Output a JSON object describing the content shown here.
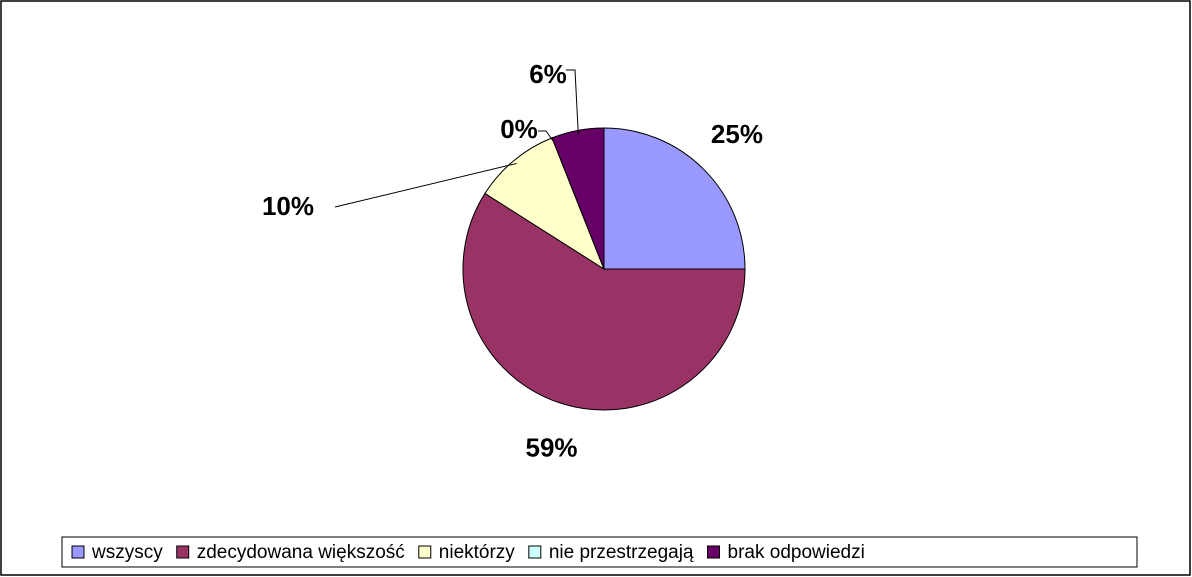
{
  "chart_data": {
    "type": "pie",
    "categories": [
      "wszyscy",
      "zdecydowana większość",
      "niektórzy",
      "nie przestrzegają",
      "brak odpowiedzi"
    ],
    "values": [
      25,
      59,
      10,
      0,
      6
    ],
    "value_labels": [
      "25%",
      "59%",
      "10%",
      "0%",
      "6%"
    ],
    "colors": [
      "#9999ff",
      "#993366",
      "#ffffcc",
      "#ccffff",
      "#660066"
    ],
    "legend": "bottom"
  }
}
